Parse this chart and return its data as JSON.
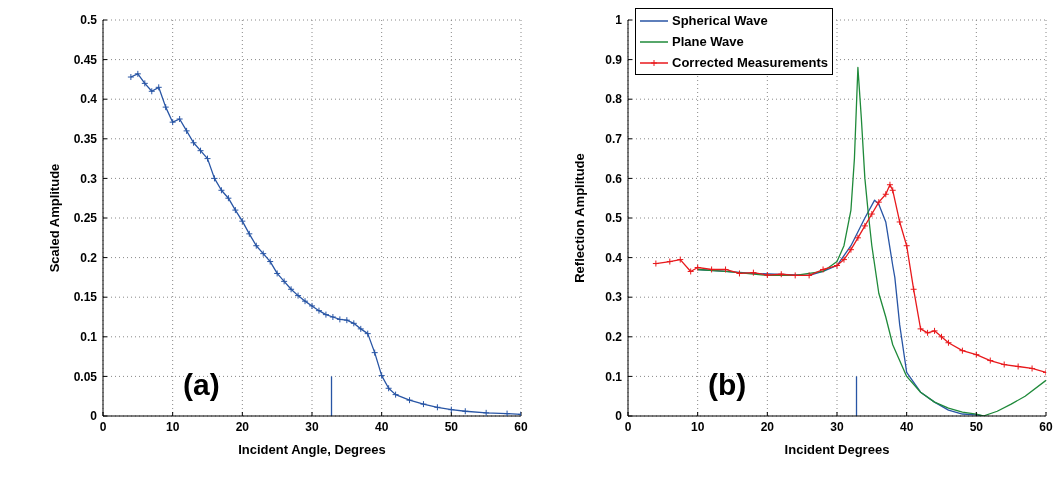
{
  "chart_data": [
    {
      "type": "line",
      "xlabel": "Incident Angle, Degrees",
      "ylabel": "Scaled Amplitude",
      "xlim": [
        0,
        60
      ],
      "xticks": [
        0,
        10,
        20,
        30,
        40,
        50,
        60
      ],
      "ylim": [
        0,
        0.5
      ],
      "yticks": [
        0,
        0.05,
        0.1,
        0.15,
        0.2,
        0.25,
        0.3,
        0.35,
        0.4,
        0.45,
        0.5
      ],
      "grid": true,
      "legend": false,
      "annotations": [
        "(a)"
      ],
      "series": [
        {
          "color": "#2855a5",
          "marker": "cross",
          "x": [
            4,
            5,
            6,
            7,
            8,
            9,
            10,
            11,
            12,
            13,
            14,
            15,
            16,
            17,
            18,
            19,
            20,
            21,
            22,
            23,
            24,
            25,
            26,
            27,
            28,
            29,
            30,
            31,
            32,
            33,
            34,
            35,
            36,
            37,
            38,
            39,
            40,
            41,
            42,
            44,
            46,
            48,
            50,
            52,
            55,
            58,
            60
          ],
          "values": [
            0.428,
            0.432,
            0.42,
            0.41,
            0.415,
            0.39,
            0.371,
            0.375,
            0.36,
            0.345,
            0.335,
            0.325,
            0.3,
            0.285,
            0.275,
            0.26,
            0.246,
            0.23,
            0.215,
            0.205,
            0.195,
            0.18,
            0.17,
            0.16,
            0.152,
            0.145,
            0.139,
            0.133,
            0.128,
            0.125,
            0.122,
            0.121,
            0.117,
            0.11,
            0.104,
            0.08,
            0.051,
            0.035,
            0.027,
            0.02,
            0.015,
            0.011,
            0.008,
            0.006,
            0.004,
            0.003,
            0.002
          ]
        },
        {
          "color": "#2855a5",
          "marker": "none",
          "x": [
            32.8,
            32.8
          ],
          "values": [
            0,
            0.05
          ]
        }
      ]
    },
    {
      "type": "line",
      "xlabel": "Incident Degrees",
      "ylabel": "Reflection Amplitude",
      "xlim": [
        0,
        60
      ],
      "xticks": [
        0,
        10,
        20,
        30,
        40,
        50,
        60
      ],
      "ylim": [
        0,
        1
      ],
      "yticks": [
        0,
        0.1,
        0.2,
        0.3,
        0.4,
        0.5,
        0.6,
        0.7,
        0.8,
        0.9,
        1
      ],
      "grid": true,
      "legend": "top left",
      "annotations": [
        "(b)"
      ],
      "series": [
        {
          "name": "Spherical Wave",
          "color": "#2855a5",
          "marker": "none",
          "x": [
            10,
            14,
            18,
            26,
            28,
            30,
            32,
            34,
            35.4,
            36,
            37,
            38,
            38.3,
            39,
            40,
            42,
            44,
            46,
            48,
            50,
            51
          ],
          "values": [
            0.37,
            0.365,
            0.36,
            0.355,
            0.365,
            0.38,
            0.43,
            0.5,
            0.545,
            0.535,
            0.49,
            0.38,
            0.35,
            0.23,
            0.11,
            0.06,
            0.035,
            0.015,
            0.005,
            0.003,
            0
          ]
        },
        {
          "name": "Plane Wave",
          "color": "#1f8a3a",
          "marker": "none",
          "x": [
            10,
            14,
            20,
            24,
            28,
            30,
            31,
            32,
            32.5,
            33,
            33.5,
            34,
            34.5,
            35,
            36,
            37,
            38,
            40,
            42,
            44,
            46,
            48,
            50,
            51,
            53,
            55,
            57,
            60
          ],
          "values": [
            0.37,
            0.365,
            0.355,
            0.355,
            0.365,
            0.39,
            0.43,
            0.52,
            0.65,
            0.88,
            0.75,
            0.6,
            0.51,
            0.43,
            0.31,
            0.25,
            0.18,
            0.1,
            0.06,
            0.035,
            0.02,
            0.01,
            0.005,
            0,
            0.012,
            0.03,
            0.05,
            0.09
          ]
        },
        {
          "name": "Corrected Measurements",
          "color": "#e8191c",
          "marker": "cross",
          "x": [
            4,
            6,
            7.5,
            9,
            10,
            12,
            14,
            16,
            18,
            20,
            22,
            24,
            26,
            28,
            30,
            31,
            32,
            33,
            34,
            35,
            36,
            37,
            37.6,
            38,
            39,
            40,
            41,
            42,
            43,
            44,
            45,
            46,
            48,
            50,
            52,
            54,
            56,
            58,
            60
          ],
          "values": [
            0.385,
            0.39,
            0.395,
            0.365,
            0.375,
            0.37,
            0.37,
            0.36,
            0.362,
            0.356,
            0.358,
            0.355,
            0.355,
            0.37,
            0.38,
            0.395,
            0.42,
            0.45,
            0.48,
            0.51,
            0.54,
            0.56,
            0.584,
            0.57,
            0.49,
            0.43,
            0.32,
            0.22,
            0.21,
            0.215,
            0.2,
            0.185,
            0.165,
            0.155,
            0.14,
            0.13,
            0.125,
            0.12,
            0.11
          ]
        },
        {
          "color": "#2855a5",
          "marker": "none",
          "x": [
            32.8,
            32.8
          ],
          "values": [
            0,
            0.1
          ]
        }
      ]
    }
  ]
}
